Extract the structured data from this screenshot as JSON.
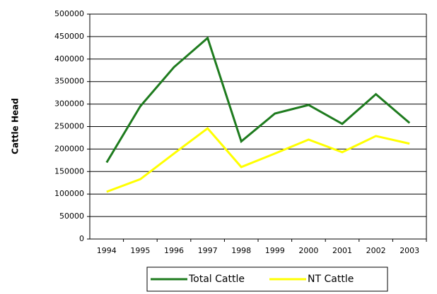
{
  "chart_data": {
    "type": "line",
    "y_label": "Cattle Head",
    "categories": [
      "1994",
      "1995",
      "1996",
      "1997",
      "1998",
      "1999",
      "2000",
      "2001",
      "2002",
      "2003"
    ],
    "series": [
      {
        "name": "Total Cattle",
        "color": "#1e7b1e",
        "values": [
          170000,
          295000,
          382000,
          447000,
          217000,
          279000,
          298000,
          256000,
          322000,
          258000
        ]
      },
      {
        "name": "NT Cattle",
        "color": "#ffff00",
        "values": [
          105000,
          133000,
          190000,
          246000,
          160000,
          190000,
          221000,
          193000,
          229000,
          212000
        ]
      }
    ],
    "ylim": [
      0,
      500000
    ],
    "yticks": [
      0,
      50000,
      100000,
      150000,
      200000,
      250000,
      300000,
      350000,
      400000,
      450000,
      500000
    ],
    "grid": true,
    "legend": "bottom"
  }
}
